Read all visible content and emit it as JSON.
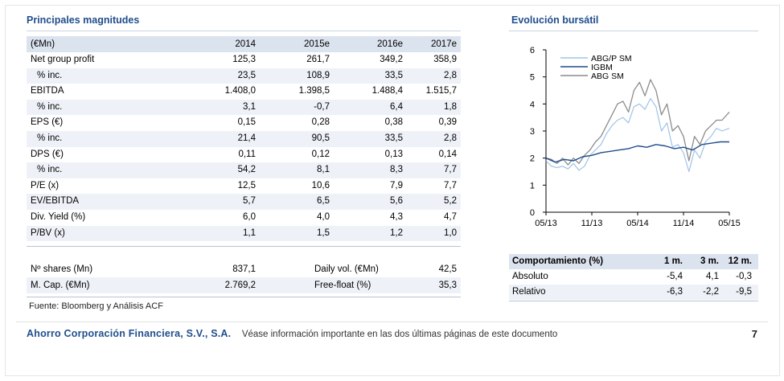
{
  "left_title": "Principales magnitudes",
  "right_title": "Evolución bursátil",
  "table": {
    "header": [
      "(€Mn)",
      "2014",
      "2015e",
      "2016e",
      "2017e"
    ],
    "rows": [
      {
        "label": "Net group profit",
        "indent": false,
        "values": [
          "125,3",
          "261,7",
          "349,2",
          "358,9"
        ]
      },
      {
        "label": "% inc.",
        "indent": true,
        "values": [
          "23,5",
          "108,9",
          "33,5",
          "2,8"
        ]
      },
      {
        "label": "EBITDA",
        "indent": false,
        "values": [
          "1.408,0",
          "1.398,5",
          "1.488,4",
          "1.515,7"
        ]
      },
      {
        "label": "% inc.",
        "indent": true,
        "values": [
          "3,1",
          "-0,7",
          "6,4",
          "1,8"
        ]
      },
      {
        "label": "EPS (€)",
        "indent": false,
        "values": [
          "0,15",
          "0,28",
          "0,38",
          "0,39"
        ]
      },
      {
        "label": "% inc.",
        "indent": true,
        "values": [
          "21,4",
          "90,5",
          "33,5",
          "2,8"
        ]
      },
      {
        "label": "DPS (€)",
        "indent": false,
        "values": [
          "0,11",
          "0,12",
          "0,13",
          "0,14"
        ]
      },
      {
        "label": "% inc.",
        "indent": true,
        "values": [
          "54,2",
          "8,1",
          "8,3",
          "7,7"
        ]
      },
      {
        "label": "P/E (x)",
        "indent": false,
        "values": [
          "12,5",
          "10,6",
          "7,9",
          "7,7"
        ]
      },
      {
        "label": "EV/EBITDA",
        "indent": false,
        "values": [
          "5,7",
          "6,5",
          "5,6",
          "5,2"
        ]
      },
      {
        "label": "Div. Yield (%)",
        "indent": false,
        "values": [
          "6,0",
          "4,0",
          "4,3",
          "4,7"
        ]
      },
      {
        "label": "P/BV (x)",
        "indent": false,
        "values": [
          "1,1",
          "1,5",
          "1,2",
          "1,0"
        ]
      }
    ]
  },
  "market": {
    "shares_label": "Nº shares (Mn)",
    "shares_value": "837,1",
    "dailyvol_label": "Daily vol. (€Mn)",
    "dailyvol_value": "42,5",
    "mcap_label": "M. Cap. (€Mn)",
    "mcap_value": "2.769,2",
    "freefloat_label": "Free-float (%)",
    "freefloat_value": "35,3"
  },
  "source": "Fuente: Bloomberg y Análisis ACF",
  "performance": {
    "header": [
      "Comportamiento (%)",
      "1 m.",
      "3 m.",
      "12 m."
    ],
    "rows": [
      {
        "label": "Absoluto",
        "values": [
          "-5,4",
          "4,1",
          "-0,3"
        ]
      },
      {
        "label": "Relativo",
        "values": [
          "-6,3",
          "-2,2",
          "-9,5"
        ]
      }
    ]
  },
  "footer": {
    "brand": "Ahorro Corporación Financiera, S.V., S.A.",
    "note": "Véase información importante en las dos últimas páginas de este documento",
    "page": "7"
  },
  "colors": {
    "accent": "#1f4e8c",
    "header_bg": "#dbe3ef",
    "row_shade": "#eef2f8",
    "series_light": "#9fc3e8",
    "series_dark": "#1f4e8c",
    "series_grey": "#8c8c8c"
  },
  "chart_data": {
    "type": "line",
    "title": "Evolución bursátil",
    "x_ticks": [
      "05/13",
      "11/13",
      "05/14",
      "11/14",
      "05/15"
    ],
    "y_ticks": [
      "0",
      "1",
      "2",
      "3",
      "4",
      "5",
      "6"
    ],
    "ylim": [
      0,
      6
    ],
    "legend_position": "top",
    "series": [
      {
        "name": "ABG/P SM",
        "color": "#9fc3e8",
        "x": [
          0,
          0.03,
          0.06,
          0.09,
          0.12,
          0.15,
          0.18,
          0.21,
          0.24,
          0.27,
          0.3,
          0.33,
          0.36,
          0.39,
          0.42,
          0.45,
          0.48,
          0.51,
          0.54,
          0.57,
          0.6,
          0.63,
          0.66,
          0.69,
          0.72,
          0.75,
          0.78,
          0.81,
          0.84,
          0.87,
          0.9,
          0.93,
          0.96,
          1.0
        ],
        "values": [
          1.9,
          1.7,
          1.65,
          1.7,
          1.6,
          1.8,
          1.55,
          1.7,
          2.1,
          2.3,
          2.5,
          2.9,
          3.2,
          3.4,
          3.5,
          3.3,
          3.9,
          4.0,
          3.8,
          4.2,
          3.9,
          3.0,
          3.3,
          2.4,
          2.5,
          2.2,
          1.5,
          2.3,
          2.0,
          2.6,
          2.8,
          3.1,
          3.0,
          3.1
        ]
      },
      {
        "name": "IGBM",
        "color": "#1f4e8c",
        "x": [
          0,
          0.05,
          0.1,
          0.15,
          0.2,
          0.25,
          0.3,
          0.35,
          0.4,
          0.45,
          0.5,
          0.55,
          0.6,
          0.65,
          0.7,
          0.75,
          0.8,
          0.85,
          0.9,
          0.95,
          1.0
        ],
        "values": [
          2.0,
          1.85,
          1.95,
          1.9,
          2.05,
          2.1,
          2.2,
          2.25,
          2.3,
          2.35,
          2.45,
          2.4,
          2.5,
          2.45,
          2.35,
          2.4,
          2.3,
          2.5,
          2.55,
          2.6,
          2.6
        ]
      },
      {
        "name": "ABG SM",
        "color": "#8c8c8c",
        "x": [
          0,
          0.03,
          0.06,
          0.09,
          0.12,
          0.15,
          0.18,
          0.21,
          0.24,
          0.27,
          0.3,
          0.33,
          0.36,
          0.39,
          0.42,
          0.45,
          0.48,
          0.51,
          0.54,
          0.57,
          0.6,
          0.63,
          0.66,
          0.69,
          0.72,
          0.75,
          0.78,
          0.81,
          0.84,
          0.87,
          0.9,
          0.93,
          0.96,
          1.0
        ],
        "values": [
          2.0,
          1.95,
          1.8,
          2.0,
          1.75,
          2.0,
          1.8,
          2.1,
          2.3,
          2.6,
          2.8,
          3.2,
          3.6,
          4.0,
          4.1,
          3.7,
          4.5,
          4.8,
          4.3,
          4.9,
          4.5,
          3.6,
          4.0,
          3.0,
          3.2,
          2.8,
          1.9,
          2.8,
          2.5,
          3.0,
          3.2,
          3.4,
          3.4,
          3.7
        ]
      }
    ]
  }
}
